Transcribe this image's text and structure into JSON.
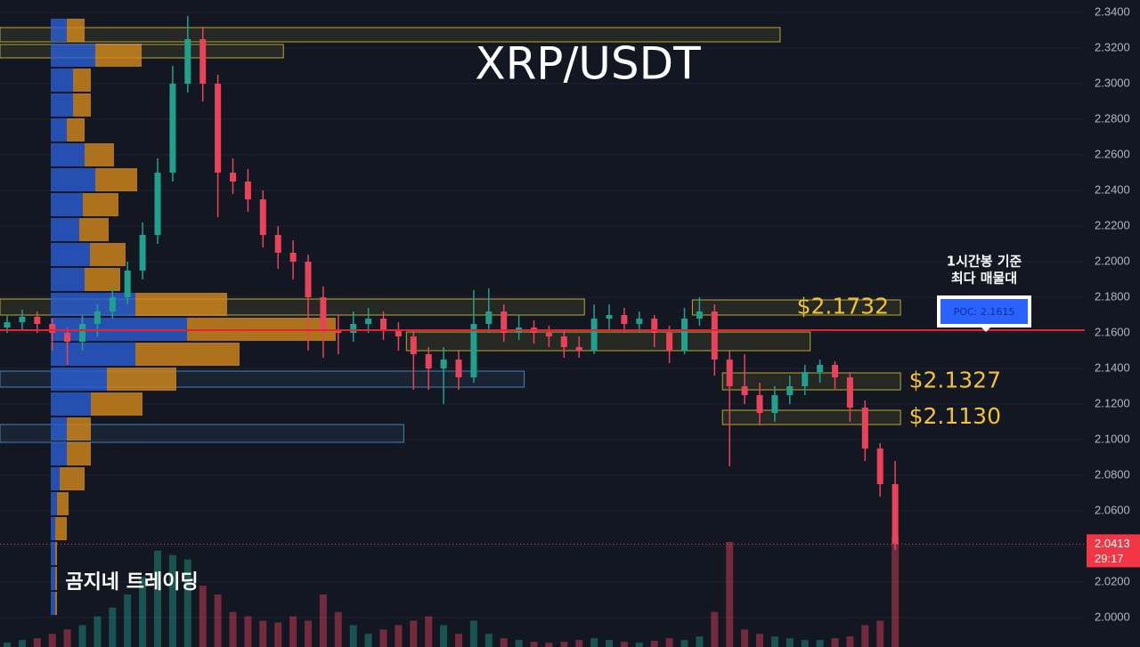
{
  "chart_data": {
    "type": "candlestick",
    "title": "XRP/USDT",
    "watermark": "곰지네 트레이딩",
    "annotation": [
      "1시간봉 기준",
      "최다 매물대"
    ],
    "ylim": [
      1.9835,
      2.347
    ],
    "yticks": [
      {
        "value": 2.34,
        "label": "2.3400"
      },
      {
        "value": 2.32,
        "label": "2.3200"
      },
      {
        "value": 2.3,
        "label": "2.3000"
      },
      {
        "value": 2.28,
        "label": "2.2800"
      },
      {
        "value": 2.26,
        "label": "2.2600"
      },
      {
        "value": 2.24,
        "label": "2.2400"
      },
      {
        "value": 2.22,
        "label": "2.2200"
      },
      {
        "value": 2.2,
        "label": "2.2000"
      },
      {
        "value": 2.18,
        "label": "2.1800"
      },
      {
        "value": 2.16,
        "label": "2.1600"
      },
      {
        "value": 2.14,
        "label": "2.1400"
      },
      {
        "value": 2.12,
        "label": "2.1200"
      },
      {
        "value": 2.1,
        "label": "2.1000"
      },
      {
        "value": 2.08,
        "label": "2.0800"
      },
      {
        "value": 2.06,
        "label": "2.0600"
      },
      {
        "value": 2.04,
        "label": "2.0400"
      },
      {
        "value": 2.02,
        "label": "2.0200"
      },
      {
        "value": 2.0,
        "label": "2.0000"
      }
    ],
    "grid": true,
    "up_color": "#22a08e",
    "down_color": "#e8435a",
    "candles": [
      [
        2.163,
        2.17,
        2.16,
        2.166
      ],
      [
        2.166,
        2.173,
        2.162,
        2.169
      ],
      [
        2.169,
        2.172,
        2.16,
        2.165
      ],
      [
        2.165,
        2.168,
        2.15,
        2.16
      ],
      [
        2.16,
        2.163,
        2.142,
        2.155
      ],
      [
        2.155,
        2.17,
        2.15,
        2.165
      ],
      [
        2.165,
        2.176,
        2.158,
        2.172
      ],
      [
        2.172,
        2.186,
        2.168,
        2.18
      ],
      [
        2.18,
        2.2,
        2.176,
        2.195
      ],
      [
        2.195,
        2.222,
        2.19,
        2.215
      ],
      [
        2.215,
        2.258,
        2.21,
        2.25
      ],
      [
        2.25,
        2.31,
        2.245,
        2.3
      ],
      [
        2.3,
        2.338,
        2.295,
        2.325
      ],
      [
        2.325,
        2.332,
        2.29,
        2.3
      ],
      [
        2.3,
        2.305,
        2.225,
        2.25
      ],
      [
        2.25,
        2.258,
        2.238,
        2.245
      ],
      [
        2.245,
        2.252,
        2.228,
        2.235
      ],
      [
        2.235,
        2.24,
        2.208,
        2.215
      ],
      [
        2.215,
        2.22,
        2.196,
        2.205
      ],
      [
        2.205,
        2.212,
        2.19,
        2.2
      ],
      [
        2.2,
        2.204,
        2.15,
        2.18
      ],
      [
        2.18,
        2.186,
        2.146,
        2.162
      ],
      [
        2.162,
        2.17,
        2.148,
        2.16
      ],
      [
        2.16,
        2.172,
        2.155,
        2.165
      ],
      [
        2.165,
        2.174,
        2.16,
        2.168
      ],
      [
        2.168,
        2.172,
        2.156,
        2.162
      ],
      [
        2.162,
        2.166,
        2.15,
        2.158
      ],
      [
        2.158,
        2.162,
        2.128,
        2.148
      ],
      [
        2.148,
        2.152,
        2.128,
        2.14
      ],
      [
        2.14,
        2.152,
        2.12,
        2.145
      ],
      [
        2.145,
        2.15,
        2.128,
        2.135
      ],
      [
        2.135,
        2.184,
        2.132,
        2.165
      ],
      [
        2.165,
        2.185,
        2.16,
        2.172
      ],
      [
        2.172,
        2.176,
        2.155,
        2.16
      ],
      [
        2.16,
        2.17,
        2.156,
        2.163
      ],
      [
        2.163,
        2.167,
        2.154,
        2.16
      ],
      [
        2.16,
        2.164,
        2.152,
        2.158
      ],
      [
        2.158,
        2.162,
        2.146,
        2.152
      ],
      [
        2.152,
        2.158,
        2.146,
        2.15
      ],
      [
        2.15,
        2.176,
        2.148,
        2.168
      ],
      [
        2.168,
        2.176,
        2.162,
        2.17
      ],
      [
        2.17,
        2.174,
        2.16,
        2.165
      ],
      [
        2.165,
        2.172,
        2.16,
        2.168
      ],
      [
        2.168,
        2.17,
        2.152,
        2.16
      ],
      [
        2.16,
        2.164,
        2.143,
        2.15
      ],
      [
        2.15,
        2.174,
        2.148,
        2.168
      ],
      [
        2.168,
        2.18,
        2.164,
        2.172
      ],
      [
        2.172,
        2.176,
        2.136,
        2.145
      ],
      [
        2.145,
        2.15,
        2.085,
        2.13
      ],
      [
        2.13,
        2.148,
        2.12,
        2.125
      ],
      [
        2.125,
        2.132,
        2.108,
        2.115
      ],
      [
        2.115,
        2.13,
        2.11,
        2.125
      ],
      [
        2.125,
        2.136,
        2.12,
        2.13
      ],
      [
        2.13,
        2.142,
        2.125,
        2.138
      ],
      [
        2.138,
        2.145,
        2.132,
        2.142
      ],
      [
        2.142,
        2.144,
        2.128,
        2.135
      ],
      [
        2.135,
        2.138,
        2.11,
        2.118
      ],
      [
        2.118,
        2.122,
        2.088,
        2.095
      ],
      [
        2.095,
        2.098,
        2.068,
        2.075
      ],
      [
        2.075,
        2.088,
        2.038,
        2.0413
      ]
    ],
    "volumes": [
      5,
      8,
      10,
      15,
      20,
      25,
      35,
      45,
      60,
      80,
      110,
      105,
      100,
      70,
      60,
      40,
      35,
      30,
      28,
      35,
      30,
      60,
      40,
      25,
      15,
      20,
      25,
      30,
      35,
      25,
      15,
      30,
      15,
      10,
      8,
      6,
      5,
      6,
      8,
      10,
      8,
      6,
      5,
      7,
      10,
      8,
      12,
      40,
      120,
      20,
      15,
      12,
      10,
      8,
      8,
      10,
      12,
      25,
      30,
      127
    ],
    "volume_profile": {
      "buy_color": "#2a5fd6",
      "sell_color": "#d68a1c",
      "levels": [
        2.33,
        2.316,
        2.302,
        2.288,
        2.274,
        2.26,
        2.246,
        2.232,
        2.218,
        2.204,
        2.19,
        2.176,
        2.162,
        2.148,
        2.134,
        2.12,
        2.106,
        2.092,
        2.078,
        2.064,
        2.05,
        2.036,
        2.022,
        2.008
      ],
      "buy": [
        18,
        50,
        25,
        25,
        18,
        38,
        50,
        36,
        32,
        44,
        38,
        95,
        153,
        95,
        63,
        45,
        18,
        18,
        10,
        7,
        5,
        5,
        5,
        5
      ],
      "sell": [
        20,
        52,
        20,
        20,
        20,
        33,
        47,
        40,
        33,
        40,
        40,
        103,
        167,
        117,
        78,
        58,
        27,
        27,
        28,
        13,
        13,
        2,
        2,
        2
      ]
    },
    "zones": [
      {
        "top": 2.3315,
        "bottom": 2.3235,
        "start": 0,
        "end": 51,
        "color": "#b8a832"
      },
      {
        "top": 2.322,
        "bottom": 2.3145,
        "start": 0,
        "end": 18,
        "color": "#b8a832"
      },
      {
        "top": 2.179,
        "bottom": 2.17,
        "start": 0,
        "end": 38,
        "color": "#b8a832"
      },
      {
        "top": 2.1785,
        "bottom": 2.17,
        "start": 46,
        "end": 59,
        "color": "#b8a832",
        "label": "$2.1732"
      },
      {
        "top": 2.1605,
        "bottom": 2.15,
        "start": 27,
        "end": 53,
        "color": "#b8a832"
      },
      {
        "top": 2.1385,
        "bottom": 2.1295,
        "start": 0,
        "end": 34,
        "color": "#4a7fb0"
      },
      {
        "top": 2.1085,
        "bottom": 2.0985,
        "start": 0,
        "end": 26,
        "color": "#4a7fb0"
      },
      {
        "top": 2.1375,
        "bottom": 2.128,
        "start": 48,
        "end": 59,
        "color": "#b8a832",
        "label": "$2.1327"
      },
      {
        "top": 2.1165,
        "bottom": 2.1085,
        "start": 48,
        "end": 59,
        "color": "#b8a832",
        "label": "$2.1130"
      }
    ],
    "poc": {
      "value": 2.1615,
      "label": "POC: 2.1615",
      "color": "#e8222f"
    },
    "last_price": 2.0413,
    "countdown": "29:17"
  }
}
